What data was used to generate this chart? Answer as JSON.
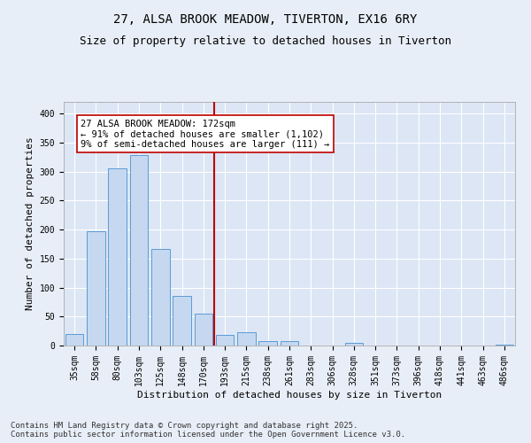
{
  "title_line1": "27, ALSA BROOK MEADOW, TIVERTON, EX16 6RY",
  "title_line2": "Size of property relative to detached houses in Tiverton",
  "xlabel": "Distribution of detached houses by size in Tiverton",
  "ylabel": "Number of detached properties",
  "categories": [
    "35sqm",
    "58sqm",
    "80sqm",
    "103sqm",
    "125sqm",
    "148sqm",
    "170sqm",
    "193sqm",
    "215sqm",
    "238sqm",
    "261sqm",
    "283sqm",
    "306sqm",
    "328sqm",
    "351sqm",
    "373sqm",
    "396sqm",
    "418sqm",
    "441sqm",
    "463sqm",
    "486sqm"
  ],
  "values": [
    20,
    197,
    305,
    328,
    167,
    85,
    55,
    18,
    23,
    7,
    7,
    0,
    0,
    5,
    0,
    0,
    0,
    0,
    0,
    0,
    2
  ],
  "bar_color": "#c5d8f0",
  "bar_edge_color": "#5b9bd5",
  "vline_x": 6.5,
  "vline_color": "#c00000",
  "annotation_text": "27 ALSA BROOK MEADOW: 172sqm\n← 91% of detached houses are smaller (1,102)\n9% of semi-detached houses are larger (111) →",
  "annotation_box_color": "#ffffff",
  "annotation_box_edge": "#c00000",
  "ylim": [
    0,
    420
  ],
  "yticks": [
    0,
    50,
    100,
    150,
    200,
    250,
    300,
    350,
    400
  ],
  "footer": "Contains HM Land Registry data © Crown copyright and database right 2025.\nContains public sector information licensed under the Open Government Licence v3.0.",
  "bg_color": "#e8eef7",
  "plot_bg": "#dce6f5",
  "grid_color": "#ffffff",
  "title_fontsize": 10,
  "subtitle_fontsize": 9,
  "label_fontsize": 8,
  "tick_fontsize": 7,
  "annot_fontsize": 7.5,
  "footer_fontsize": 6.5
}
